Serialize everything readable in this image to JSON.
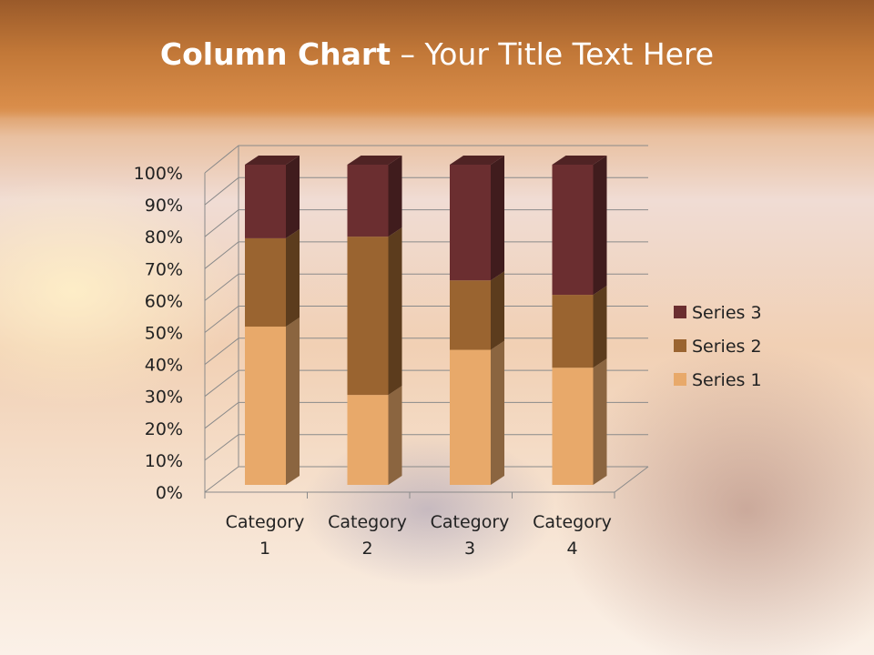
{
  "slide": {
    "title_bold": "Column Chart",
    "title_rest": " – Your Title Text Here"
  },
  "chart_data": {
    "type": "bar",
    "stacking": "percent",
    "three_d": true,
    "categories": [
      "Category 1",
      "Category 2",
      "Category 3",
      "Category 4"
    ],
    "category_lines": [
      [
        "Category",
        "1"
      ],
      [
        "Category",
        "2"
      ],
      [
        "Category",
        "3"
      ],
      [
        "Category",
        "4"
      ]
    ],
    "series": [
      {
        "name": "Series 1",
        "values": [
          4.3,
          2.5,
          3.5,
          4.5
        ],
        "color": "#E8A96A"
      },
      {
        "name": "Series 2",
        "values": [
          2.4,
          4.4,
          1.8,
          2.8
        ],
        "color": "#9A6430"
      },
      {
        "name": "Series 3",
        "values": [
          2,
          2,
          3,
          5
        ],
        "color": "#6B2E30"
      }
    ],
    "yticks": [
      "0%",
      "10%",
      "20%",
      "30%",
      "40%",
      "50%",
      "60%",
      "70%",
      "80%",
      "90%",
      "100%"
    ],
    "ylim": [
      0,
      100
    ],
    "grid": true,
    "legend": "right"
  }
}
